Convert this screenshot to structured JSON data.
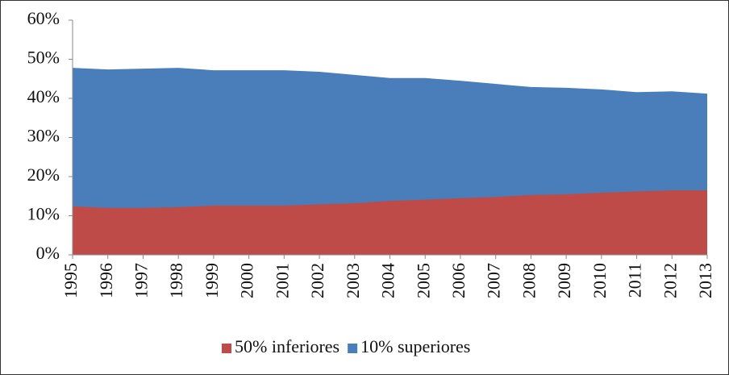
{
  "chart_data": {
    "type": "area",
    "categories": [
      "1995",
      "1996",
      "1997",
      "1998",
      "1999",
      "2000",
      "2001",
      "2002",
      "2003",
      "2004",
      "2005",
      "2006",
      "2007",
      "2008",
      "2009",
      "2010",
      "2011",
      "2012",
      "2013"
    ],
    "series": [
      {
        "name": "10% superiores",
        "color": "#4a7ebb",
        "values": [
          47.8,
          47.4,
          47.6,
          47.8,
          47.2,
          47.2,
          47.2,
          46.8,
          46.0,
          45.2,
          45.2,
          44.5,
          43.7,
          42.9,
          42.7,
          42.3,
          41.6,
          41.8,
          41.2
        ]
      },
      {
        "name": "50% inferiores",
        "color": "#be4b48",
        "values": [
          12.4,
          12.0,
          12.0,
          12.2,
          12.6,
          12.6,
          12.6,
          12.9,
          13.2,
          13.8,
          14.1,
          14.5,
          14.8,
          15.3,
          15.5,
          15.9,
          16.2,
          16.5,
          16.5
        ]
      }
    ],
    "legend_order": [
      1,
      0
    ],
    "ylim": [
      0,
      60
    ],
    "yticks": [
      {
        "value": 0,
        "label": "0%"
      },
      {
        "value": 10,
        "label": "10%"
      },
      {
        "value": 20,
        "label": "20%"
      },
      {
        "value": 30,
        "label": "30%"
      },
      {
        "value": 40,
        "label": "40%"
      },
      {
        "value": 50,
        "label": "50%"
      },
      {
        "value": 60,
        "label": "60%"
      }
    ],
    "legend": "bottom"
  }
}
